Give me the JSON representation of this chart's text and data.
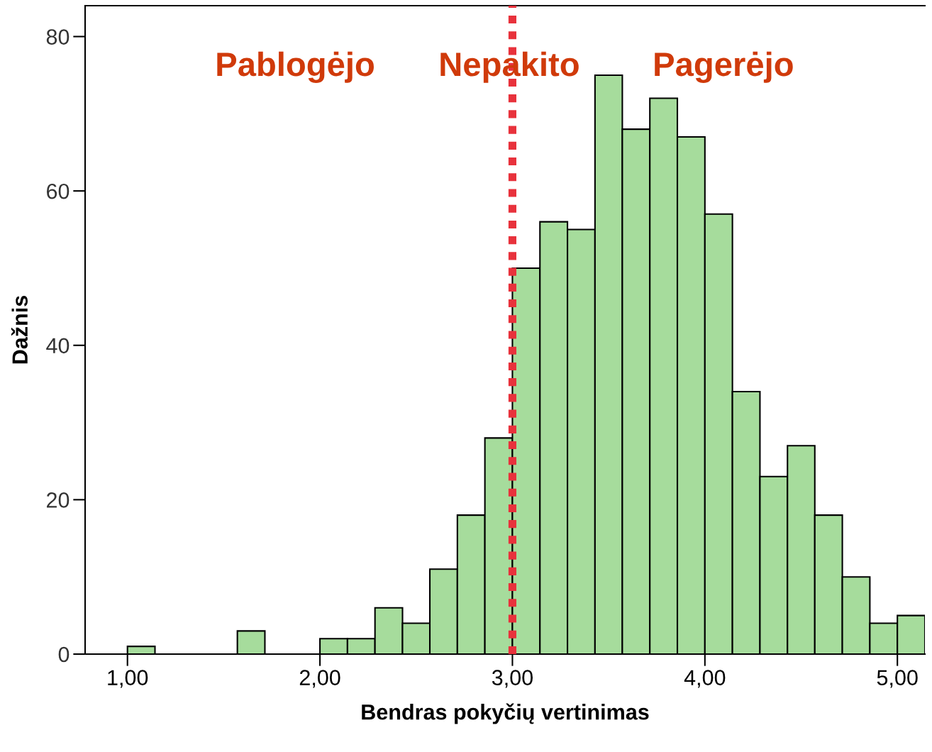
{
  "chart_data": {
    "type": "histogram",
    "xlabel": "Bendras pokyčių vertinimas",
    "ylabel": "Dažnis",
    "bins": [
      1.0,
      1.143,
      1.286,
      1.429,
      1.571,
      1.714,
      1.857,
      2.0,
      2.143,
      2.286,
      2.429,
      2.571,
      2.714,
      2.857,
      3.0,
      3.143,
      3.286,
      3.429,
      3.571,
      3.714,
      3.857,
      4.0,
      4.143,
      4.286,
      4.429,
      4.571,
      4.714,
      4.857,
      5.0,
      5.143
    ],
    "values": [
      1,
      0,
      0,
      0,
      3,
      0,
      0,
      2,
      2,
      6,
      4,
      11,
      18,
      28,
      50,
      56,
      55,
      75,
      68,
      72,
      67,
      57,
      34,
      23,
      27,
      18,
      10,
      4,
      5
    ],
    "color": "#a6dc9c",
    "xlim": [
      0.78,
      5.143
    ],
    "ylim": [
      0,
      84
    ],
    "xticks": [
      {
        "value": 1,
        "label": "1,00"
      },
      {
        "value": 2,
        "label": "2,00"
      },
      {
        "value": 3,
        "label": "3,00"
      },
      {
        "value": 4,
        "label": "4,00"
      },
      {
        "value": 5,
        "label": "5,00"
      }
    ],
    "yticks": [
      0,
      20,
      40,
      60,
      80
    ],
    "ref_lines": [
      {
        "axis": "x",
        "value": 3,
        "color": "#e8323c",
        "line_style": "dotted"
      }
    ],
    "annotations": [
      "Pablogėjo",
      "Nepakito",
      "Pagerėjo"
    ],
    "grid": false
  }
}
